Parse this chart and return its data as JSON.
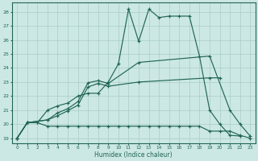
{
  "bg_color": "#cce8e4",
  "grid_color": "#a8ccc8",
  "line_color": "#226655",
  "xlabel": "Humidex (Indice chaleur)",
  "xlim": [
    -0.5,
    23.5
  ],
  "ylim": [
    18.65,
    28.65
  ],
  "xticks": [
    0,
    1,
    2,
    3,
    4,
    5,
    6,
    7,
    8,
    9,
    10,
    11,
    12,
    13,
    14,
    15,
    16,
    17,
    18,
    19,
    20,
    21,
    22,
    23
  ],
  "yticks": [
    19,
    20,
    21,
    22,
    23,
    24,
    25,
    26,
    27,
    28
  ],
  "curves": [
    {
      "x": [
        0,
        1,
        2,
        3,
        4,
        5,
        6,
        7,
        8,
        9,
        10,
        11,
        12,
        13,
        14,
        15,
        16,
        17,
        18,
        19,
        20,
        21,
        22,
        23
      ],
      "y": [
        19.0,
        20.1,
        20.1,
        19.85,
        19.85,
        19.85,
        19.85,
        19.85,
        19.85,
        19.85,
        19.85,
        19.85,
        19.85,
        19.85,
        19.85,
        19.85,
        19.85,
        19.85,
        19.85,
        19.5,
        19.5,
        19.5,
        19.2,
        19.0
      ]
    },
    {
      "x": [
        0,
        1,
        2,
        3,
        4,
        5,
        6,
        7,
        8,
        9,
        10,
        11,
        12,
        13,
        14,
        15,
        16,
        17,
        18,
        19,
        20,
        21,
        22
      ],
      "y": [
        19.0,
        20.1,
        20.1,
        21.0,
        21.3,
        21.5,
        22.0,
        22.2,
        22.2,
        23.0,
        24.3,
        28.2,
        25.9,
        28.2,
        27.6,
        27.7,
        27.7,
        27.7,
        24.85,
        21.0,
        20.0,
        19.2,
        19.15
      ]
    },
    {
      "x": [
        0,
        1,
        3,
        4,
        5,
        6,
        7,
        8,
        9,
        12,
        19,
        21,
        22,
        23
      ],
      "y": [
        19.0,
        20.1,
        20.3,
        20.8,
        21.1,
        21.6,
        22.95,
        23.1,
        22.9,
        24.4,
        24.85,
        21.0,
        20.0,
        19.15
      ]
    },
    {
      "x": [
        0,
        1,
        3,
        4,
        5,
        6,
        7,
        8,
        9,
        12,
        19,
        20
      ],
      "y": [
        19.0,
        20.1,
        20.3,
        20.6,
        20.95,
        21.35,
        22.65,
        22.9,
        22.7,
        23.0,
        23.3,
        23.3
      ]
    }
  ]
}
